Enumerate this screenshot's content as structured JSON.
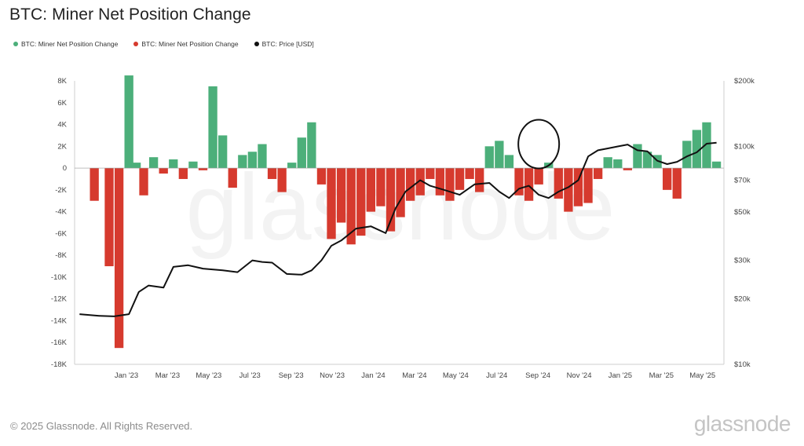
{
  "title": "BTC: Miner Net Position Change",
  "legend": [
    {
      "label": "BTC: Miner Net Position Change",
      "color": "#4caf7a"
    },
    {
      "label": "BTC: Miner Net Position Change",
      "color": "#d63a2e"
    },
    {
      "label": "BTC: Price [USD]",
      "color": "#111111"
    }
  ],
  "footer": "© 2025 Glassnode. All Rights Reserved.",
  "brand": "glassnode",
  "watermark": "glassnode",
  "chart_data": {
    "type": "bar",
    "x_ticks": [
      "Jan '23",
      "Mar '23",
      "May '23",
      "Jul '23",
      "Sep '23",
      "Nov '23",
      "Jan '24",
      "Mar '24",
      "May '24",
      "Jul '24",
      "Sep '24",
      "Nov '24",
      "Jan '25",
      "Mar '25",
      "May '25"
    ],
    "y_left_ticks": [
      "8K",
      "6K",
      "4K",
      "2K",
      "0",
      "-2K",
      "-4K",
      "-6K",
      "-8K",
      "-10K",
      "-12K",
      "-14K",
      "-16K",
      "-18K"
    ],
    "y_left_range": [
      -18000,
      8000
    ],
    "y_right_ticks": [
      "$200k",
      "$100k",
      "$70k",
      "$50k",
      "$30k",
      "$20k",
      "$10k"
    ],
    "y_right_range": [
      10000,
      200000
    ],
    "y_right_scale": "log",
    "series": [
      {
        "name": "BTC: Miner Net Position Change",
        "kind": "bars",
        "x": [
          2022.88,
          2022.94,
          2022.98,
          2023.02,
          2023.05,
          2023.08,
          2023.12,
          2023.16,
          2023.2,
          2023.24,
          2023.28,
          2023.32,
          2023.36,
          2023.4,
          2023.44,
          2023.48,
          2023.52,
          2023.56,
          2023.6,
          2023.64,
          2023.68,
          2023.72,
          2023.76,
          2023.8,
          2023.84,
          2023.88,
          2023.92,
          2023.96,
          2024.0,
          2024.04,
          2024.08,
          2024.12,
          2024.16,
          2024.2,
          2024.24,
          2024.28,
          2024.32,
          2024.36,
          2024.4,
          2024.44,
          2024.48,
          2024.52,
          2024.56,
          2024.6,
          2024.64,
          2024.68,
          2024.72,
          2024.76,
          2024.8,
          2024.84,
          2024.88,
          2024.92,
          2024.96,
          2025.0,
          2025.04,
          2025.08,
          2025.12,
          2025.16,
          2025.2,
          2025.24,
          2025.28,
          2025.32,
          2025.36,
          2025.4
        ],
        "values": [
          -3000,
          -9000,
          -16500,
          8500,
          500,
          -2500,
          1000,
          -500,
          800,
          -1000,
          600,
          -200,
          7500,
          3000,
          -1800,
          1200,
          1500,
          2200,
          -1000,
          -2200,
          500,
          2800,
          4200,
          -1500,
          -6500,
          -5000,
          -7000,
          -6200,
          -4000,
          -3500,
          -5800,
          -4500,
          -3000,
          -2500,
          -1000,
          -2500,
          -3000,
          -2000,
          -1000,
          -2200,
          2000,
          2500,
          1200,
          -2500,
          -3000,
          -1500,
          500,
          -2800,
          -4000,
          -3500,
          -3200,
          -1000,
          1000,
          800,
          -200,
          2200,
          1500,
          1200,
          -2000,
          -2800,
          2500,
          3500,
          4200,
          600
        ],
        "positive_color": "#4caf7a",
        "negative_color": "#d63a2e"
      },
      {
        "name": "BTC: Price [USD]",
        "kind": "line",
        "color": "#111111",
        "x": [
          2022.82,
          2022.9,
          2022.96,
          2023.02,
          2023.06,
          2023.1,
          2023.16,
          2023.2,
          2023.26,
          2023.32,
          2023.4,
          2023.46,
          2023.52,
          2023.56,
          2023.6,
          2023.66,
          2023.72,
          2023.76,
          2023.8,
          2023.84,
          2023.88,
          2023.94,
          2024.0,
          2024.06,
          2024.1,
          2024.14,
          2024.2,
          2024.24,
          2024.3,
          2024.36,
          2024.42,
          2024.48,
          2024.52,
          2024.56,
          2024.6,
          2024.64,
          2024.68,
          2024.72,
          2024.76,
          2024.8,
          2024.84,
          2024.88,
          2024.92,
          2024.96,
          2025.0,
          2025.04,
          2025.08,
          2025.12,
          2025.16,
          2025.2,
          2025.24,
          2025.28,
          2025.32,
          2025.36,
          2025.4
        ],
        "values": [
          17000,
          16700,
          16600,
          17000,
          21500,
          23000,
          22500,
          28000,
          28500,
          27500,
          27000,
          26500,
          30000,
          29500,
          29300,
          26000,
          25800,
          27000,
          30000,
          35000,
          37000,
          42000,
          43000,
          40000,
          52000,
          62000,
          70000,
          66000,
          63000,
          60000,
          67000,
          68000,
          62000,
          58000,
          64000,
          66000,
          60000,
          58000,
          62000,
          65000,
          70000,
          90000,
          96000,
          98000,
          100000,
          102000,
          96000,
          95000,
          86000,
          83000,
          85000,
          90000,
          94000,
          103000,
          104000
        ]
      }
    ],
    "annotation": "circle around Sep '24 positive miner position change"
  }
}
